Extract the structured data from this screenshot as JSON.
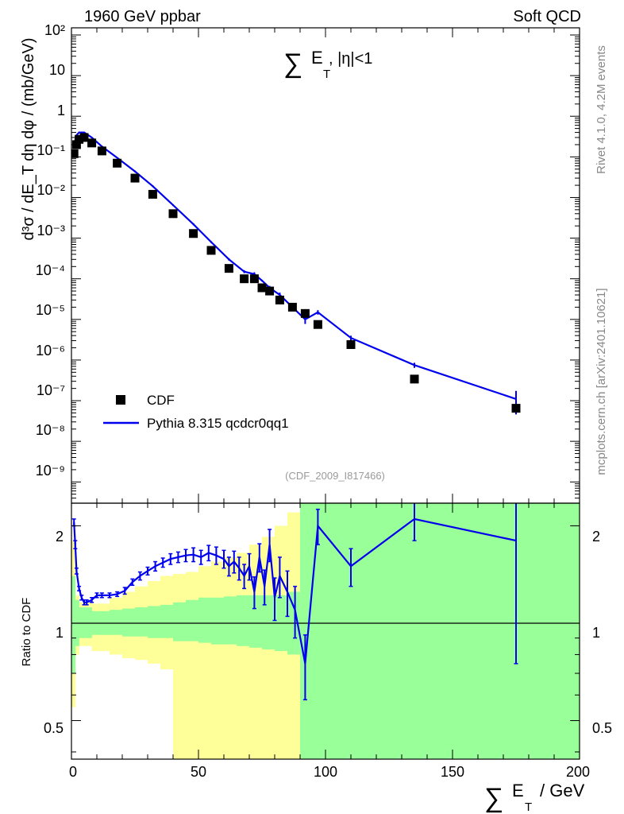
{
  "header": {
    "left": "1960 GeV ppbar",
    "right": "Soft QCD"
  },
  "side": {
    "rivet": "Rivet 4.1.0,  4.2M events",
    "mcplots": "mcplots.cern.ch [arXiv:2401.10621]"
  },
  "main": {
    "title_sym": "∑",
    "title_main": "E",
    "title_sub": "T",
    "title_tail": ", |η|<1",
    "watermark": "(CDF_2009_I817466)",
    "ylabel": "d³σ / dE_T dη dφ / (mb/GeV)",
    "ytick_labels": [
      "10²",
      "10",
      "1",
      "10⁻¹",
      "10⁻²",
      "10⁻³",
      "10⁻⁴",
      "10⁻⁵",
      "10⁻⁶",
      "10⁻⁷",
      "10⁻⁸",
      "10⁻⁹"
    ]
  },
  "ratio": {
    "ylabel": "Ratio to CDF",
    "ytick_labels": [
      "0.5",
      "1",
      "2"
    ]
  },
  "xaxis": {
    "sym": "∑",
    "main": "E",
    "sub": "T",
    "tail": "/ GeV",
    "tick_labels": [
      "0",
      "50",
      "100",
      "150",
      "200"
    ]
  },
  "legend": {
    "data_label": "CDF",
    "mc_label": "Pythia 8.315 qcdcr0qq1"
  },
  "colors": {
    "mc": "#0000ee",
    "data": "#000000",
    "band_stat": "#99ff99",
    "band_syst": "#ffff99"
  },
  "chart_data": [
    {
      "type": "scatter",
      "title": "∑E_T, |η|<1",
      "xlabel": "∑E_T / GeV",
      "ylabel": "d³σ / dE_T dη dφ / (mb/GeV)",
      "xlim": [
        0,
        200
      ],
      "ylim": [
        3e-10,
        150
      ],
      "yscale": "log",
      "series": [
        {
          "name": "CDF",
          "x": [
            1,
            2,
            3,
            5,
            8,
            12,
            18,
            25,
            32,
            40,
            48,
            55,
            62,
            68,
            72,
            75,
            78,
            82,
            87,
            92,
            97,
            110,
            135,
            175
          ],
          "y": [
            0.12,
            0.2,
            0.27,
            0.3,
            0.22,
            0.14,
            0.07,
            0.03,
            0.012,
            0.004,
            0.0013,
            0.0005,
            0.00018,
            0.0001,
            0.0001,
            6e-05,
            5e-05,
            3e-05,
            2e-05,
            1.4e-05,
            7.5e-06,
            2.4e-06,
            3.4e-07,
            6.5e-08
          ]
        },
        {
          "name": "Pythia 8.315 qcdcr0qq1",
          "x": [
            1,
            2,
            3,
            5,
            8,
            12,
            18,
            25,
            32,
            40,
            48,
            55,
            62,
            68,
            72,
            75,
            78,
            82,
            87,
            92,
            97,
            110,
            135,
            175
          ],
          "y": [
            0.2,
            0.34,
            0.4,
            0.4,
            0.3,
            0.18,
            0.095,
            0.044,
            0.019,
            0.0065,
            0.0022,
            0.0008,
            0.0003,
            0.00015,
            0.00013,
            9e-05,
            6e-05,
            4e-05,
            2e-05,
            1e-05,
            1.5e-05,
            3.5e-06,
            7.5e-07,
            1.1e-07
          ]
        }
      ]
    },
    {
      "type": "line",
      "title": "Ratio to CDF",
      "xlabel": "∑E_T / GeV",
      "ylabel": "Ratio to CDF",
      "xlim": [
        0,
        200
      ],
      "ylim": [
        0.38,
        2.35
      ],
      "yscale": "log",
      "reference": 1,
      "series": [
        {
          "name": "Pythia 8.315 qcdcr0qq1",
          "x": [
            1,
            1.5,
            2,
            3,
            4,
            5,
            6,
            8,
            10,
            12,
            15,
            18,
            21,
            24,
            27,
            30,
            33,
            36,
            39,
            42,
            45,
            48,
            51,
            54,
            57,
            60,
            62,
            64,
            66,
            68,
            70,
            72,
            74,
            76,
            78,
            80,
            82,
            85,
            88,
            92,
            97,
            110,
            135,
            175
          ],
          "y": [
            2.05,
            1.75,
            1.45,
            1.28,
            1.2,
            1.16,
            1.16,
            1.18,
            1.22,
            1.22,
            1.22,
            1.23,
            1.26,
            1.34,
            1.4,
            1.45,
            1.5,
            1.54,
            1.58,
            1.6,
            1.62,
            1.63,
            1.6,
            1.65,
            1.62,
            1.58,
            1.5,
            1.55,
            1.48,
            1.4,
            1.5,
            1.25,
            1.6,
            1.3,
            1.75,
            1.2,
            1.4,
            1.25,
            1.1,
            0.75,
            2.0,
            1.5,
            2.1,
            1.8
          ],
          "err": [
            0.05,
            0.05,
            0.03,
            0.02,
            0.02,
            0.02,
            0.02,
            0.02,
            0.02,
            0.02,
            0.02,
            0.02,
            0.03,
            0.03,
            0.04,
            0.04,
            0.05,
            0.05,
            0.06,
            0.06,
            0.07,
            0.08,
            0.08,
            0.09,
            0.1,
            0.1,
            0.1,
            0.12,
            0.12,
            0.12,
            0.14,
            0.14,
            0.16,
            0.16,
            0.2,
            0.18,
            0.2,
            0.2,
            0.2,
            0.17,
            0.25,
            0.2,
            0.3,
            1.05
          ]
        }
      ],
      "bands": [
        {
          "name": "stat",
          "x": [
            0,
            1.5,
            3,
            8,
            15,
            20,
            25,
            30,
            35,
            40,
            45,
            50,
            55,
            60,
            65,
            70,
            75,
            80,
            85,
            90,
            120,
            200
          ],
          "lo": [
            0.7,
            0.85,
            0.9,
            0.92,
            0.92,
            0.91,
            0.91,
            0.9,
            0.9,
            0.88,
            0.88,
            0.87,
            0.86,
            0.86,
            0.85,
            0.84,
            0.83,
            0.82,
            0.8,
            0.35,
            0.35,
            0.35
          ],
          "hi": [
            1.4,
            1.18,
            1.12,
            1.09,
            1.1,
            1.11,
            1.12,
            1.13,
            1.14,
            1.16,
            1.18,
            1.2,
            1.2,
            1.21,
            1.22,
            1.22,
            1.22,
            1.22,
            1.25,
            2.5,
            2.5,
            2.5
          ]
        },
        {
          "name": "syst",
          "x": [
            0,
            1.5,
            3,
            8,
            15,
            20,
            25,
            30,
            35,
            40,
            45,
            50,
            55,
            60,
            65,
            70,
            75,
            80,
            85,
            90,
            120,
            200
          ],
          "lo": [
            0.55,
            0.8,
            0.85,
            0.82,
            0.8,
            0.78,
            0.77,
            0.75,
            0.72,
            0.35,
            0.35,
            0.35,
            0.35,
            0.35,
            0.35,
            0.35,
            0.35,
            0.35,
            0.35,
            0.35,
            0.35,
            0.35
          ],
          "hi": [
            1.8,
            1.22,
            1.16,
            1.15,
            1.2,
            1.25,
            1.3,
            1.35,
            1.4,
            1.42,
            1.44,
            1.5,
            1.55,
            1.6,
            1.65,
            1.75,
            1.85,
            2.0,
            2.2,
            2.5,
            2.5,
            2.5
          ]
        }
      ]
    }
  ]
}
